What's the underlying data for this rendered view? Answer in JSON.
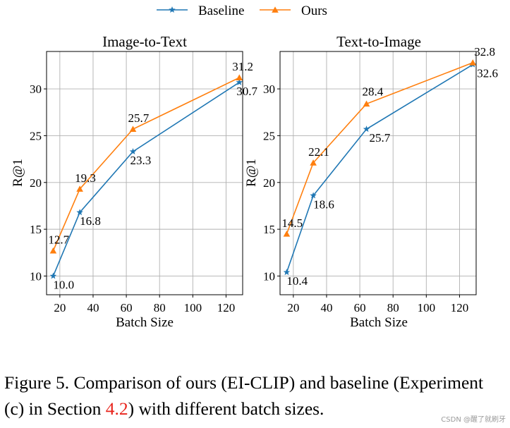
{
  "legend": {
    "baseline_label": "Baseline",
    "ours_label": "Ours"
  },
  "colors": {
    "baseline": "#1f77b4",
    "ours": "#ff7f0e",
    "grid": "#b0b0b0",
    "axis": "#000000"
  },
  "chart_data": [
    {
      "type": "line",
      "title": "Image-to-Text",
      "xlabel": "Batch Size",
      "ylabel": "R@1",
      "x": [
        16,
        32,
        64,
        128
      ],
      "xlim": [
        12,
        130
      ],
      "ylim": [
        8,
        34
      ],
      "xticks": [
        "20",
        "40",
        "60",
        "80",
        "100",
        "120"
      ],
      "yticks": [
        "10",
        "15",
        "20",
        "25",
        "30"
      ],
      "grid": true,
      "series": [
        {
          "name": "Baseline",
          "marker": "star",
          "values": [
            10.0,
            16.8,
            23.3,
            30.7
          ],
          "labels": [
            "10.0",
            "16.8",
            "23.3",
            "30.7"
          ]
        },
        {
          "name": "Ours",
          "marker": "triangle",
          "values": [
            12.7,
            19.3,
            25.7,
            31.2
          ],
          "labels": [
            "12.7",
            "19.3",
            "25.7",
            "31.2"
          ]
        }
      ]
    },
    {
      "type": "line",
      "title": "Text-to-Image",
      "xlabel": "Batch Size",
      "ylabel": "R@1",
      "x": [
        16,
        32,
        64,
        128
      ],
      "xlim": [
        12,
        130
      ],
      "ylim": [
        8,
        34
      ],
      "xticks": [
        "20",
        "40",
        "60",
        "80",
        "100",
        "120"
      ],
      "yticks": [
        "10",
        "15",
        "20",
        "25",
        "30"
      ],
      "grid": true,
      "series": [
        {
          "name": "Baseline",
          "marker": "star",
          "values": [
            10.4,
            18.6,
            25.7,
            32.6
          ],
          "labels": [
            "10.4",
            "18.6",
            "25.7",
            "32.6"
          ]
        },
        {
          "name": "Ours",
          "marker": "triangle",
          "values": [
            14.5,
            22.1,
            28.4,
            32.8
          ],
          "labels": [
            "14.5",
            "22.1",
            "28.4",
            "32.8"
          ]
        }
      ]
    }
  ],
  "caption": {
    "line1": "Figure 5. Comparison of ours (EI-CLIP) and baseline (Experiment",
    "line2_before": "(c) in Section ",
    "line2_ref": "4.2",
    "line2_after": ") with different batch sizes."
  },
  "watermark": "CSDN @醒了就刷牙"
}
